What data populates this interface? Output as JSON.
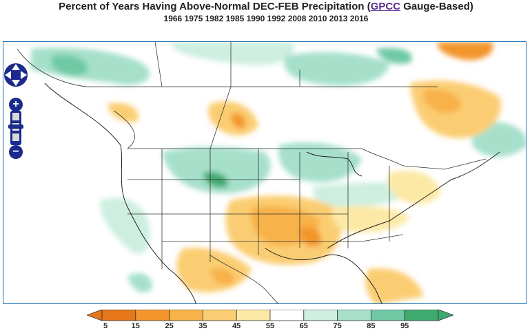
{
  "title": {
    "prefix": "Percent of Years Having Above-Normal DEC-FEB Precipitation (",
    "link": "GPCC",
    "suffix": " Gauge-Based)"
  },
  "subtitle": "1966 1975 1982 1985 1990 1992 2008 2010 2013 2016",
  "colors": {
    "frame_border": "#1e6fb5",
    "nav_blue": "#1b2a8c",
    "legend_bins": [
      "#e6761a",
      "#f3952a",
      "#f7b24a",
      "#fbcd72",
      "#fde9a6",
      "#ffffff",
      "#cdeee0",
      "#a6e0cb",
      "#6fc9a5",
      "#3faa6e"
    ]
  },
  "legend": {
    "ticks": [
      "5",
      "15",
      "25",
      "35",
      "45",
      "55",
      "65",
      "75",
      "85",
      "95"
    ]
  },
  "map": {
    "description_labels": []
  }
}
